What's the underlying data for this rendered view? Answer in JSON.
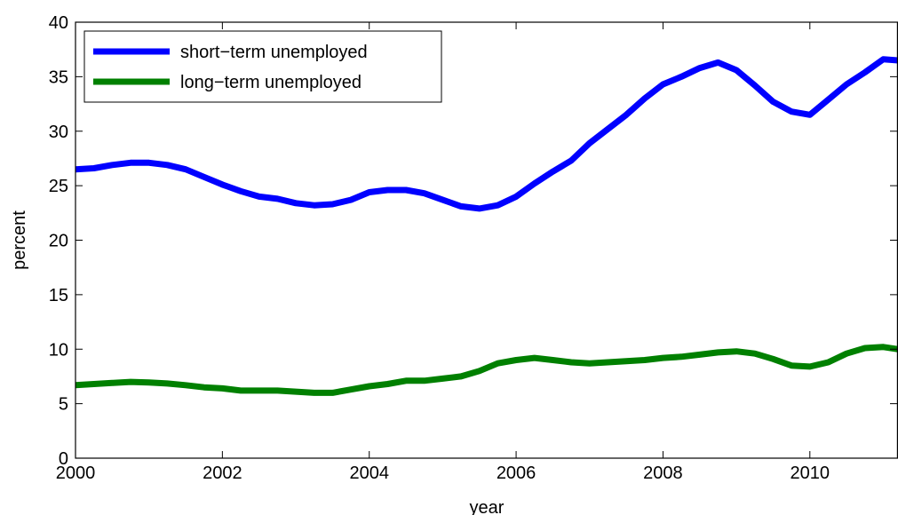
{
  "chart_data": {
    "type": "line",
    "xlabel": "year",
    "ylabel": "percent",
    "xlim": [
      2000,
      2011.2
    ],
    "ylim": [
      0,
      40
    ],
    "xticks": [
      2000,
      2002,
      2004,
      2006,
      2008,
      2010
    ],
    "yticks": [
      0,
      5,
      10,
      15,
      20,
      25,
      30,
      35,
      40
    ],
    "grid": false,
    "legend_position": "top-left",
    "series": [
      {
        "name": "short−term unemployed",
        "color": "#0000ff",
        "x": [
          2000,
          2000.25,
          2000.5,
          2000.75,
          2001,
          2001.25,
          2001.5,
          2001.75,
          2002,
          2002.25,
          2002.5,
          2002.75,
          2003,
          2003.25,
          2003.5,
          2003.75,
          2004,
          2004.25,
          2004.5,
          2004.75,
          2005,
          2005.25,
          2005.5,
          2005.75,
          2006,
          2006.25,
          2006.5,
          2006.75,
          2007,
          2007.25,
          2007.5,
          2007.75,
          2008,
          2008.25,
          2008.5,
          2008.75,
          2009,
          2009.25,
          2009.5,
          2009.75,
          2010,
          2010.25,
          2010.5,
          2010.75,
          2011,
          2011.2
        ],
        "y": [
          26.5,
          26.6,
          26.9,
          27.1,
          27.1,
          26.9,
          26.5,
          25.8,
          25.1,
          24.5,
          24.0,
          23.8,
          23.4,
          23.2,
          23.3,
          23.7,
          24.4,
          24.6,
          24.6,
          24.3,
          23.7,
          23.1,
          22.9,
          23.2,
          24.0,
          25.2,
          26.3,
          27.3,
          28.9,
          30.2,
          31.5,
          33.0,
          34.3,
          35.0,
          35.8,
          36.3,
          35.6,
          34.2,
          32.7,
          31.8,
          31.5,
          32.9,
          34.3,
          35.4,
          36.6,
          36.5
        ]
      },
      {
        "name": "long−term unemployed",
        "color": "#008000",
        "x": [
          2000,
          2000.25,
          2000.5,
          2000.75,
          2001,
          2001.25,
          2001.5,
          2001.75,
          2002,
          2002.25,
          2002.5,
          2002.75,
          2003,
          2003.25,
          2003.5,
          2003.75,
          2004,
          2004.25,
          2004.5,
          2004.75,
          2005,
          2005.25,
          2005.5,
          2005.75,
          2006,
          2006.25,
          2006.5,
          2006.75,
          2007,
          2007.25,
          2007.5,
          2007.75,
          2008,
          2008.25,
          2008.5,
          2008.75,
          2009,
          2009.25,
          2009.5,
          2009.75,
          2010,
          2010.25,
          2010.5,
          2010.75,
          2011,
          2011.2
        ],
        "y": [
          6.7,
          6.8,
          6.9,
          7.0,
          6.95,
          6.85,
          6.7,
          6.5,
          6.4,
          6.2,
          6.2,
          6.2,
          6.1,
          6.0,
          6.0,
          6.3,
          6.6,
          6.8,
          7.1,
          7.1,
          7.3,
          7.5,
          8.0,
          8.7,
          9.0,
          9.2,
          9.0,
          8.8,
          8.7,
          8.8,
          8.9,
          9.0,
          9.2,
          9.3,
          9.5,
          9.7,
          9.8,
          9.6,
          9.1,
          8.5,
          8.4,
          8.8,
          9.6,
          10.1,
          10.2,
          10.0
        ]
      }
    ]
  }
}
